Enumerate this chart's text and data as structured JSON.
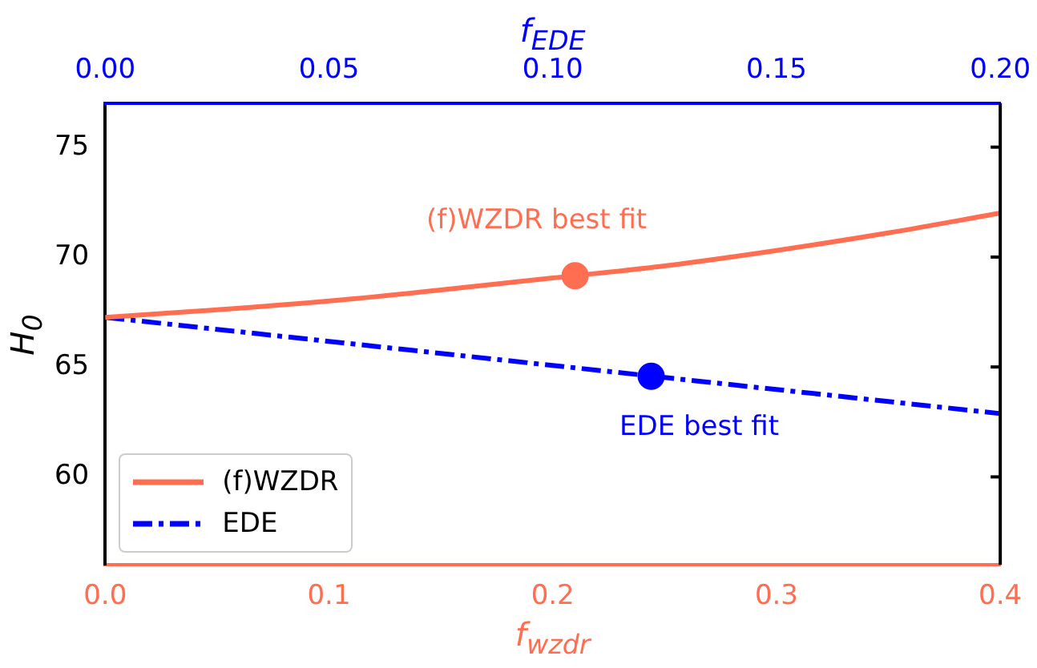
{
  "chart_data": {
    "type": "line",
    "xlabel": "f$_{wzdr}$",
    "x2label": "f$_{EDE}$",
    "ylabel": "H$_{0}$",
    "xlim": [
      0,
      0.4
    ],
    "xticks": [
      {
        "value": 0,
        "label": "0.0"
      },
      {
        "value": 0.1,
        "label": "0.1"
      },
      {
        "value": 0.2,
        "label": "0.2"
      },
      {
        "value": 0.3,
        "label": "0.3"
      },
      {
        "value": 0.4,
        "label": "0.4"
      }
    ],
    "x2lim": [
      0,
      0.2
    ],
    "x2ticks": [
      {
        "value": 0,
        "label": "0.00"
      },
      {
        "value": 0.05,
        "label": "0.05"
      },
      {
        "value": 0.1,
        "label": "0.10"
      },
      {
        "value": 0.15,
        "label": "0.15"
      },
      {
        "value": 0.2,
        "label": "0.20"
      }
    ],
    "ylim": [
      56,
      77
    ],
    "yticks": [
      60,
      65,
      70,
      75
    ],
    "grid": false,
    "legend": "bottom left",
    "series": [
      {
        "name": "(f)WZDR",
        "color": "#ff6e50",
        "line_style": "solid",
        "marker": "none",
        "x": [
          0,
          0.05,
          0.1,
          0.15,
          0.2,
          0.25,
          0.3,
          0.35,
          0.4
        ],
        "values": [
          67.26,
          67.6,
          68.0,
          68.5,
          69.05,
          69.6,
          70.3,
          71.1,
          72.0
        ]
      },
      {
        "name": "EDE",
        "axis": "x2",
        "color": "#0000ff",
        "line_style": "dashdot",
        "marker": "none",
        "x": [
          0,
          0.2
        ],
        "values": [
          67.26,
          62.88
        ]
      },
      {
        "type": "scatter",
        "color": "#ff6e50",
        "marker": "circle",
        "x": [
          0.21
        ],
        "values": [
          69.15
        ]
      },
      {
        "type": "scatter",
        "axis": "x2",
        "color": "#0000ff",
        "marker": "circle",
        "x": [
          0.122
        ],
        "values": [
          64.58
        ]
      }
    ],
    "annotations": [
      "(f)WZDR best fit",
      "EDE best fit"
    ]
  }
}
